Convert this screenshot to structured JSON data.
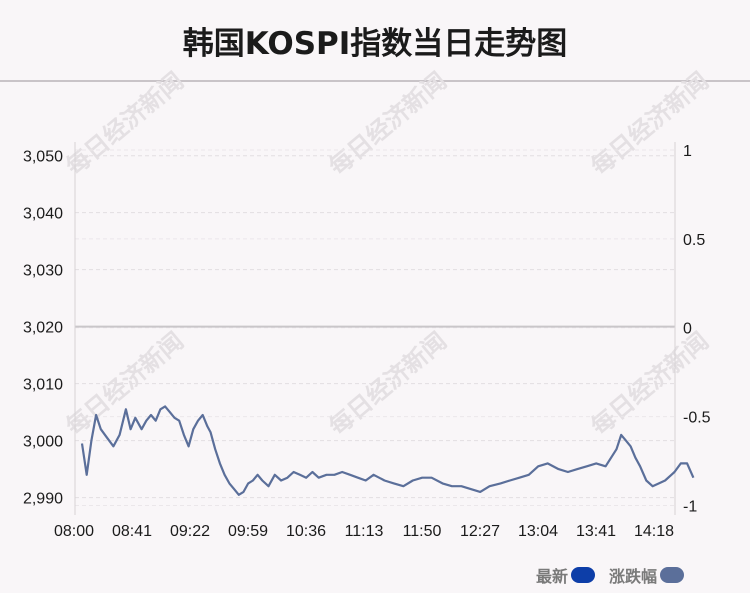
{
  "title": "韩国KOSPI指数当日走势图",
  "watermark": "每日经济新闻",
  "legend": [
    {
      "label": "最新",
      "color": "#0d3ea8"
    },
    {
      "label": "涨跌幅",
      "color": "#5b6f9a"
    }
  ],
  "chart_data": {
    "type": "line",
    "title": "韩国KOSPI指数当日走势图",
    "y_left": {
      "ticks": [
        "2,990",
        "3,000",
        "3,010",
        "3,020",
        "3,030",
        "3,040",
        "3,050"
      ],
      "range": [
        2988,
        3051
      ]
    },
    "y_right": {
      "ticks": [
        "-1",
        "-0.5",
        "0",
        "0.5",
        "1"
      ],
      "range": [
        -1.02,
        1.0
      ]
    },
    "x_ticks": [
      "08:00",
      "08:41",
      "09:22",
      "09:59",
      "10:36",
      "11:13",
      "11:50",
      "12:27",
      "13:04",
      "13:41",
      "14:18"
    ],
    "reference_line": 3020,
    "grid": true,
    "legend_position": "bottom-right",
    "series": [
      {
        "name": "最新",
        "color": "#5b6f9a",
        "x": [
          "08:00",
          "08:03",
          "08:06",
          "08:09",
          "08:12",
          "08:16",
          "08:20",
          "08:24",
          "08:28",
          "08:31",
          "08:34",
          "08:38",
          "08:41",
          "08:44",
          "08:47",
          "08:50",
          "08:53",
          "08:56",
          "08:59",
          "09:02",
          "09:05",
          "09:08",
          "09:11",
          "09:14",
          "09:17",
          "09:20",
          "09:22",
          "09:25",
          "09:28",
          "09:31",
          "09:34",
          "09:37",
          "09:40",
          "09:43",
          "09:46",
          "09:49",
          "09:52",
          "09:55",
          "09:59",
          "10:03",
          "10:07",
          "10:11",
          "10:15",
          "10:19",
          "10:23",
          "10:27",
          "10:31",
          "10:36",
          "10:41",
          "10:46",
          "10:51",
          "10:56",
          "11:01",
          "11:06",
          "11:13",
          "11:19",
          "11:25",
          "11:31",
          "11:37",
          "11:43",
          "11:50",
          "11:56",
          "12:02",
          "12:08",
          "12:14",
          "12:20",
          "12:27",
          "12:33",
          "12:39",
          "12:45",
          "12:51",
          "12:57",
          "13:04",
          "13:10",
          "13:16",
          "13:22",
          "13:28",
          "13:34",
          "13:41",
          "13:44",
          "13:47",
          "13:50",
          "13:53",
          "13:56",
          "14:00",
          "14:04",
          "14:08",
          "14:12",
          "14:16",
          "14:18",
          "14:22",
          "14:26",
          "14:30"
        ],
        "values": [
          2999.5,
          2994.0,
          3000.0,
          3004.5,
          3002.0,
          3000.5,
          2999.0,
          3001.0,
          3005.5,
          3002.0,
          3004.0,
          3002.0,
          3003.5,
          3004.5,
          3003.5,
          3005.5,
          3006.0,
          3005.0,
          3004.0,
          3003.5,
          3001.0,
          2999.0,
          3002.0,
          3003.5,
          3004.5,
          3002.5,
          3001.5,
          2998.5,
          2996.0,
          2994.0,
          2992.5,
          2991.5,
          2990.5,
          2991.0,
          2992.5,
          2993.0,
          2994.0,
          2993.0,
          2992.0,
          2994.0,
          2993.0,
          2993.5,
          2994.5,
          2994.0,
          2993.5,
          2994.5,
          2993.5,
          2994.0,
          2994.0,
          2994.5,
          2994.0,
          2993.5,
          2993.0,
          2994.0,
          2993.0,
          2992.5,
          2992.0,
          2993.0,
          2993.5,
          2993.5,
          2992.5,
          2992.0,
          2992.0,
          2991.5,
          2991.0,
          2992.0,
          2992.5,
          2993.0,
          2993.5,
          2994.0,
          2995.5,
          2996.0,
          2995.0,
          2994.5,
          2995.0,
          2995.5,
          2996.0,
          2995.5,
          2998.5,
          3001.0,
          3000.0,
          2999.0,
          2997.0,
          2995.5,
          2993.0,
          2992.0,
          2992.5,
          2993.0,
          2994.0,
          2994.5,
          2996.0,
          2996.0,
          2993.5
        ]
      }
    ]
  }
}
